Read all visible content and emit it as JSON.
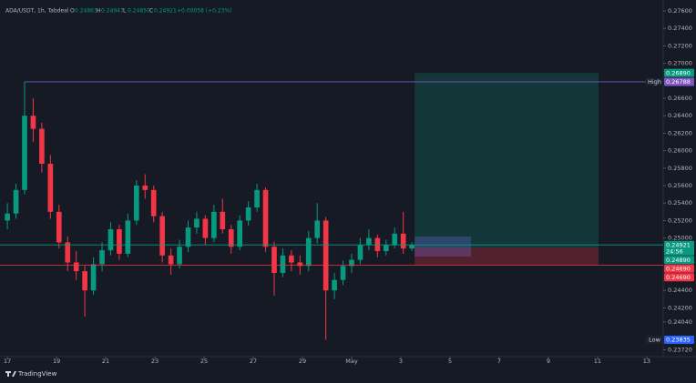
{
  "chart_data": {
    "type": "candlestick",
    "header": {
      "symbol": "ADA/USDT, 1h, Tabdeal",
      "o_label": "O",
      "open": "0.24863",
      "h_label": "H",
      "high": "0.24947",
      "l_label": "L",
      "low": "0.24850",
      "c_label": "C",
      "close": "0.24921",
      "change": "+0.00058 (+0.23%)"
    },
    "x": [
      0,
      0.35,
      0.7,
      1.05,
      1.4,
      1.75,
      2.1,
      2.45,
      2.8,
      3.15,
      3.5,
      3.85,
      4.2,
      4.55,
      4.9,
      5.25,
      5.6,
      5.95,
      6.3,
      6.65,
      7,
      7.35,
      7.7,
      8.05,
      8.4,
      8.75,
      9.1,
      9.45,
      9.8,
      10.15,
      10.5,
      10.85,
      11.2,
      11.55,
      11.9,
      12.25,
      12.6,
      12.95,
      13.3,
      13.65,
      14,
      14.35,
      14.7,
      15.05,
      15.4,
      15.75,
      16.1,
      16.45
    ],
    "ohlc": [
      [
        0.252,
        0.254,
        0.251,
        0.2528
      ],
      [
        0.2528,
        0.2562,
        0.2522,
        0.2555
      ],
      [
        0.2555,
        0.26788,
        0.255,
        0.264
      ],
      [
        0.264,
        0.266,
        0.261,
        0.2625
      ],
      [
        0.2625,
        0.2632,
        0.2575,
        0.2585
      ],
      [
        0.2585,
        0.2595,
        0.2522,
        0.253
      ],
      [
        0.253,
        0.2538,
        0.2488,
        0.2495
      ],
      [
        0.2495,
        0.2502,
        0.2462,
        0.2472
      ],
      [
        0.2472,
        0.2485,
        0.2452,
        0.2462
      ],
      [
        0.2462,
        0.2468,
        0.241,
        0.244
      ],
      [
        0.244,
        0.2478,
        0.2435,
        0.247
      ],
      [
        0.247,
        0.2495,
        0.2462,
        0.2486
      ],
      [
        0.2486,
        0.2518,
        0.248,
        0.251
      ],
      [
        0.251,
        0.2515,
        0.2475,
        0.2482
      ],
      [
        0.2482,
        0.2528,
        0.2478,
        0.252
      ],
      [
        0.252,
        0.2566,
        0.2515,
        0.256
      ],
      [
        0.256,
        0.2573,
        0.2545,
        0.2555
      ],
      [
        0.2555,
        0.256,
        0.2518,
        0.2525
      ],
      [
        0.2525,
        0.253,
        0.2472,
        0.248
      ],
      [
        0.248,
        0.2488,
        0.2458,
        0.247
      ],
      [
        0.247,
        0.2498,
        0.2465,
        0.249
      ],
      [
        0.249,
        0.252,
        0.2484,
        0.2512
      ],
      [
        0.2512,
        0.253,
        0.2505,
        0.2522
      ],
      [
        0.2522,
        0.2526,
        0.2492,
        0.25
      ],
      [
        0.25,
        0.2538,
        0.2495,
        0.253
      ],
      [
        0.253,
        0.2545,
        0.2505,
        0.251
      ],
      [
        0.251,
        0.2515,
        0.2482,
        0.249
      ],
      [
        0.249,
        0.2526,
        0.2486,
        0.252
      ],
      [
        0.252,
        0.2542,
        0.2514,
        0.2535
      ],
      [
        0.2535,
        0.2562,
        0.253,
        0.2555
      ],
      [
        0.2555,
        0.2558,
        0.2484,
        0.249
      ],
      [
        0.249,
        0.2496,
        0.2434,
        0.246
      ],
      [
        0.246,
        0.2488,
        0.2455,
        0.248
      ],
      [
        0.248,
        0.2486,
        0.2462,
        0.2472
      ],
      [
        0.2472,
        0.248,
        0.2458,
        0.2468
      ],
      [
        0.2468,
        0.2508,
        0.2462,
        0.25
      ],
      [
        0.25,
        0.254,
        0.2494,
        0.252
      ],
      [
        0.252,
        0.2524,
        0.23835,
        0.244
      ],
      [
        0.244,
        0.246,
        0.243,
        0.2452
      ],
      [
        0.2452,
        0.2474,
        0.2446,
        0.2468
      ],
      [
        0.2468,
        0.2482,
        0.246,
        0.2475
      ],
      [
        0.2475,
        0.25,
        0.247,
        0.2492
      ],
      [
        0.2492,
        0.251,
        0.2486,
        0.25
      ],
      [
        0.25,
        0.2504,
        0.2478,
        0.2485
      ],
      [
        0.2485,
        0.2498,
        0.248,
        0.2492
      ],
      [
        0.2492,
        0.2512,
        0.2488,
        0.2505
      ],
      [
        0.2505,
        0.253,
        0.2482,
        0.2488
      ],
      [
        0.2488,
        0.2495,
        0.2485,
        0.2492
      ]
    ],
    "up_color": "#089981",
    "down_color": "#f23645",
    "xlim": [
      -0.3,
      26.67
    ],
    "xticks": [
      {
        "value": 0,
        "label": "17"
      },
      {
        "value": 2,
        "label": "19"
      },
      {
        "value": 4,
        "label": "21"
      },
      {
        "value": 6,
        "label": "23"
      },
      {
        "value": 8,
        "label": "25"
      },
      {
        "value": 10,
        "label": "27"
      },
      {
        "value": 12,
        "label": "29"
      },
      {
        "value": 14,
        "label": "May"
      },
      {
        "value": 16,
        "label": "3"
      },
      {
        "value": 18,
        "label": "5"
      },
      {
        "value": 20,
        "label": "7"
      },
      {
        "value": 22,
        "label": "9"
      },
      {
        "value": 24,
        "label": "11"
      },
      {
        "value": 26,
        "label": "13"
      }
    ],
    "ylim": [
      0.23642,
      0.27725
    ],
    "yticks": [
      {
        "value": 0.276,
        "label": "0.27600"
      },
      {
        "value": 0.274,
        "label": "0.27400"
      },
      {
        "value": 0.272,
        "label": "0.27200"
      },
      {
        "value": 0.27,
        "label": "0.27000"
      },
      {
        "value": 0.266,
        "label": "0.26600"
      },
      {
        "value": 0.264,
        "label": "0.26400"
      },
      {
        "value": 0.262,
        "label": "0.26200"
      },
      {
        "value": 0.26,
        "label": "0.26000"
      },
      {
        "value": 0.258,
        "label": "0.25800"
      },
      {
        "value": 0.256,
        "label": "0.25600"
      },
      {
        "value": 0.254,
        "label": "0.25400"
      },
      {
        "value": 0.252,
        "label": "0.25200"
      },
      {
        "value": 0.25,
        "label": "0.25000"
      },
      {
        "value": 0.244,
        "label": "0.24400"
      },
      {
        "value": 0.242,
        "label": "0.24200"
      },
      {
        "value": 0.2404,
        "label": "0.24040"
      },
      {
        "value": 0.2372,
        "label": "0.23720"
      }
    ],
    "levels": [
      {
        "value": 0.2689,
        "label": "0.26890",
        "color": "#089981"
      },
      {
        "value": 0.26788,
        "label": "0.26788",
        "color": "#7e57c2",
        "tag": "High",
        "line": true
      },
      {
        "value": 0.24921,
        "label": "0.24921",
        "color": "#089981",
        "countdown": "24:56",
        "line": true
      },
      {
        "value": 0.2489,
        "label": "0.24890",
        "color": "#089981"
      },
      {
        "value": 0.2469,
        "label": "0.24690",
        "color": "#f23645",
        "line": true
      },
      {
        "value": 0.2469,
        "label": "0.24690",
        "color": "#f23645"
      },
      {
        "value": 0.23835,
        "label": "0.23835",
        "color": "#2962ff",
        "tag": "Low"
      }
    ],
    "position": {
      "start": 16.56,
      "end": 24.04,
      "entry": 0.2489,
      "target": 0.2689,
      "stop": 0.2469
    },
    "brand": "TradingView"
  }
}
